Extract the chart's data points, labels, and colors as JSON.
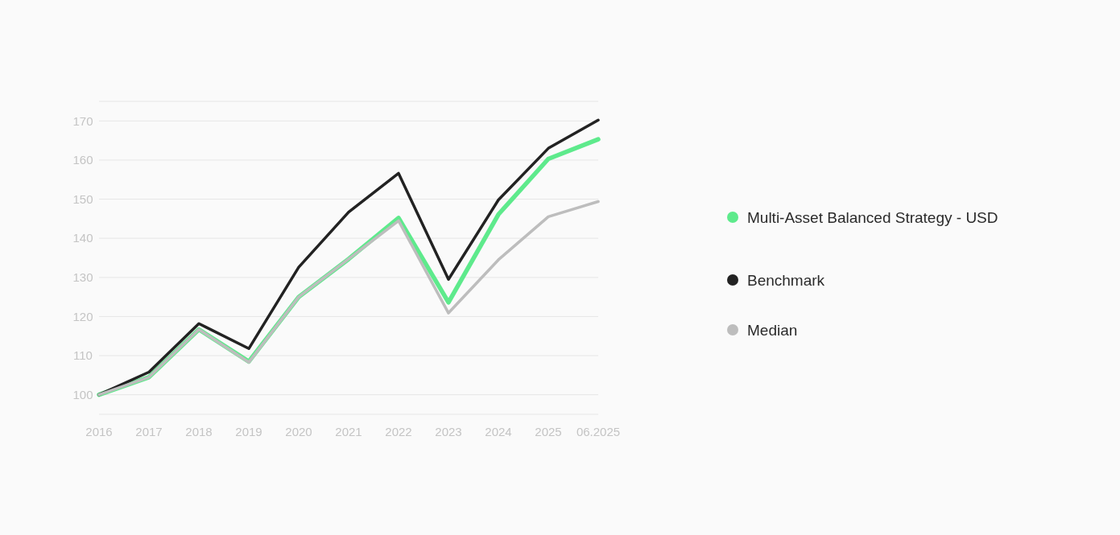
{
  "chart_data": {
    "type": "line",
    "categories": [
      "2016",
      "2017",
      "2018",
      "2019",
      "2020",
      "2021",
      "2022",
      "2023",
      "2024",
      "2025",
      "06.2025"
    ],
    "series": [
      {
        "name": "Multi-Asset Balanced Strategy - USD",
        "color": "#5eea8c",
        "values": [
          100,
          104.5,
          116.7,
          108.5,
          125,
          134.7,
          145.2,
          123.6,
          146.1,
          160.3,
          165.3
        ]
      },
      {
        "name": "Benchmark",
        "color": "#222222",
        "values": [
          100,
          105.8,
          118.2,
          111.8,
          132.6,
          146.7,
          156.6,
          129.5,
          149.8,
          163,
          170.2
        ]
      },
      {
        "name": "Median",
        "color": "#bdbdbd",
        "values": [
          100,
          104.5,
          116.7,
          108.3,
          125,
          134.7,
          144.5,
          120.9,
          134.5,
          145.5,
          149.4
        ]
      }
    ],
    "ylim": [
      95,
      175
    ],
    "yticks": [
      100,
      110,
      120,
      130,
      140,
      150,
      160,
      170
    ],
    "grid": "y",
    "legend": "right",
    "marker": "none",
    "line_style": "solid"
  }
}
